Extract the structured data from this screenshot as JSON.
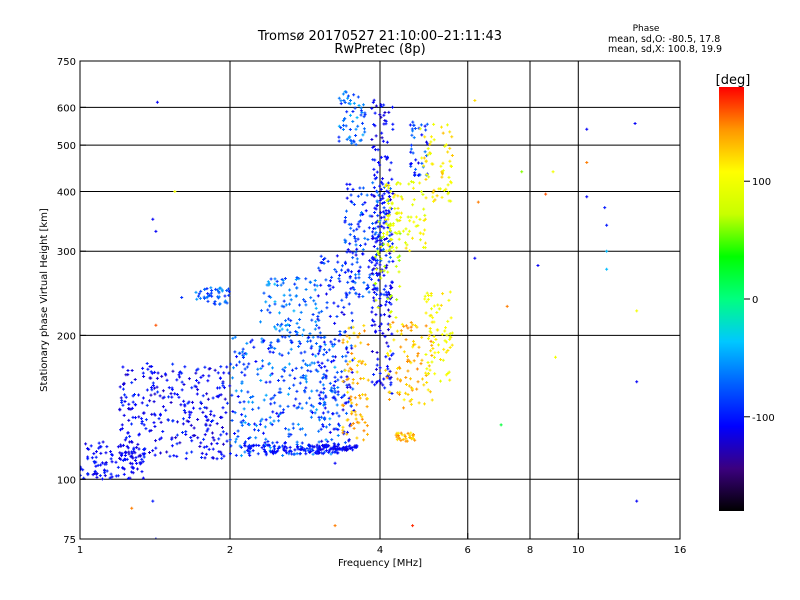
{
  "chart_data": {
    "type": "scatter",
    "title": "Tromsø 20170527 21:10:00–21:11:43",
    "subtitle": "RwPretec (8p)",
    "xlabel": "Frequency [MHz]",
    "ylabel": "Stationary phase Virtual Height [km]",
    "x_scale": "log",
    "y_scale": "log",
    "xlim": [
      1,
      16
    ],
    "ylim": [
      75,
      750
    ],
    "x_ticks": [
      1,
      2,
      4,
      6,
      8,
      10,
      16
    ],
    "x_tick_labels": [
      "1",
      "2",
      "4",
      "6",
      "8",
      "10",
      "16"
    ],
    "x_grid": [
      2,
      4,
      6,
      8,
      10
    ],
    "y_ticks": [
      75,
      100,
      200,
      300,
      400,
      500,
      600,
      750
    ],
    "y_tick_labels": [
      "75",
      "100",
      "200",
      "300",
      "400",
      "500",
      "600",
      "750"
    ],
    "y_grid": [
      100,
      200,
      300,
      400,
      500,
      600
    ],
    "grid": true,
    "stats": {
      "heading": "Phase",
      "line_o": "mean, sd,O: -80.5, 17.8",
      "line_x": "mean, sd,X: 100.8, 19.9"
    },
    "colorbar": {
      "label": "[deg]",
      "range": [
        -180,
        180
      ],
      "ticks": [
        100,
        0,
        -100
      ],
      "tick_labels": [
        "100",
        "0",
        "-100"
      ],
      "stops": [
        "#000000",
        "#3b007f",
        "#0000ff",
        "#0060ff",
        "#00c8ff",
        "#00ff80",
        "#00ff00",
        "#c8ff00",
        "#ffff00",
        "#ff9600",
        "#ff0000"
      ]
    },
    "clusters": [
      {
        "x": [
          1.0,
          1.35
        ],
        "y": [
          100,
          120
        ],
        "phase": [
          -120,
          -95
        ],
        "n": 120
      },
      {
        "x": [
          1.2,
          2.0
        ],
        "y": [
          110,
          175
        ],
        "phase": [
          -125,
          -90
        ],
        "n": 300
      },
      {
        "x": [
          2.0,
          3.3
        ],
        "y": [
          112,
          200
        ],
        "phase": [
          -110,
          -45
        ],
        "n": 320
      },
      {
        "x": [
          2.1,
          3.3
        ],
        "y": [
          113,
          118
        ],
        "phase": [
          -115,
          -90
        ],
        "n": 110
      },
      {
        "x": [
          1.7,
          2.0
        ],
        "y": [
          232,
          252
        ],
        "phase": [
          -100,
          -50
        ],
        "n": 45
      },
      {
        "x": [
          2.3,
          3.0
        ],
        "y": [
          200,
          265
        ],
        "phase": [
          -90,
          -40
        ],
        "n": 90
      },
      {
        "x": [
          3.0,
          3.55
        ],
        "y": [
          115,
          300
        ],
        "phase": [
          -120,
          -70
        ],
        "n": 160
      },
      {
        "x": [
          3.0,
          3.6
        ],
        "y": [
          115,
          118
        ],
        "phase": [
          -120,
          -100
        ],
        "n": 50
      },
      {
        "x": [
          3.35,
          3.8
        ],
        "y": [
          120,
          210
        ],
        "phase": [
          115,
          150
        ],
        "n": 80
      },
      {
        "x": [
          3.4,
          4.2
        ],
        "y": [
          240,
          420
        ],
        "phase": [
          -115,
          -60
        ],
        "n": 180
      },
      {
        "x": [
          3.3,
          3.75
        ],
        "y": [
          500,
          650
        ],
        "phase": [
          -100,
          -40
        ],
        "n": 60
      },
      {
        "x": [
          3.85,
          4.25
        ],
        "y": [
          150,
          640
        ],
        "phase": [
          -125,
          -95
        ],
        "n": 200
      },
      {
        "x": [
          3.9,
          4.4
        ],
        "y": [
          215,
          360
        ],
        "phase": [
          60,
          95
        ],
        "n": 45
      },
      {
        "x": [
          4.1,
          4.95
        ],
        "y": [
          300,
          420
        ],
        "phase": [
          80,
          120
        ],
        "n": 90
      },
      {
        "x": [
          4.1,
          5.1
        ],
        "y": [
          140,
          215
        ],
        "phase": [
          110,
          150
        ],
        "n": 90
      },
      {
        "x": [
          4.3,
          4.7
        ],
        "y": [
          120,
          125
        ],
        "phase": [
          110,
          150
        ],
        "n": 30
      },
      {
        "x": [
          4.6,
          5.0
        ],
        "y": [
          430,
          560
        ],
        "phase": [
          -115,
          -60
        ],
        "n": 40
      },
      {
        "x": [
          4.8,
          5.6
        ],
        "y": [
          380,
          560
        ],
        "phase": [
          90,
          130
        ],
        "n": 60
      },
      {
        "x": [
          4.9,
          5.6
        ],
        "y": [
          160,
          250
        ],
        "phase": [
          90,
          120
        ],
        "n": 70
      }
    ],
    "isolated_points": [
      {
        "x": 1.43,
        "y": 615,
        "phase": -110
      },
      {
        "x": 1.4,
        "y": 350,
        "phase": -110
      },
      {
        "x": 1.42,
        "y": 330,
        "phase": -110
      },
      {
        "x": 1.42,
        "y": 210,
        "phase": 160
      },
      {
        "x": 1.4,
        "y": 90,
        "phase": -100
      },
      {
        "x": 1.27,
        "y": 87,
        "phase": 150
      },
      {
        "x": 1.42,
        "y": 75,
        "phase": -100
      },
      {
        "x": 1.55,
        "y": 400,
        "phase": 100
      },
      {
        "x": 1.6,
        "y": 240,
        "phase": -90
      },
      {
        "x": 3.25,
        "y": 80,
        "phase": 150
      },
      {
        "x": 3.25,
        "y": 108,
        "phase": -110
      },
      {
        "x": 4.65,
        "y": 80,
        "phase": 170
      },
      {
        "x": 6.2,
        "y": 620,
        "phase": 120
      },
      {
        "x": 6.2,
        "y": 290,
        "phase": -110
      },
      {
        "x": 6.3,
        "y": 380,
        "phase": 150
      },
      {
        "x": 7.0,
        "y": 130,
        "phase": 20
      },
      {
        "x": 7.2,
        "y": 230,
        "phase": 150
      },
      {
        "x": 7.7,
        "y": 440,
        "phase": 60
      },
      {
        "x": 8.3,
        "y": 280,
        "phase": -110
      },
      {
        "x": 8.6,
        "y": 395,
        "phase": 160
      },
      {
        "x": 8.9,
        "y": 440,
        "phase": 100
      },
      {
        "x": 9.0,
        "y": 180,
        "phase": 100
      },
      {
        "x": 10.4,
        "y": 540,
        "phase": -110
      },
      {
        "x": 10.4,
        "y": 460,
        "phase": 150
      },
      {
        "x": 10.4,
        "y": 390,
        "phase": -110
      },
      {
        "x": 11.3,
        "y": 370,
        "phase": -100
      },
      {
        "x": 11.4,
        "y": 340,
        "phase": -100
      },
      {
        "x": 11.4,
        "y": 300,
        "phase": -40
      },
      {
        "x": 11.4,
        "y": 275,
        "phase": -40
      },
      {
        "x": 13.0,
        "y": 555,
        "phase": -110
      },
      {
        "x": 13.1,
        "y": 225,
        "phase": 100
      },
      {
        "x": 13.1,
        "y": 160,
        "phase": -110
      },
      {
        "x": 13.1,
        "y": 90,
        "phase": -110
      }
    ]
  }
}
